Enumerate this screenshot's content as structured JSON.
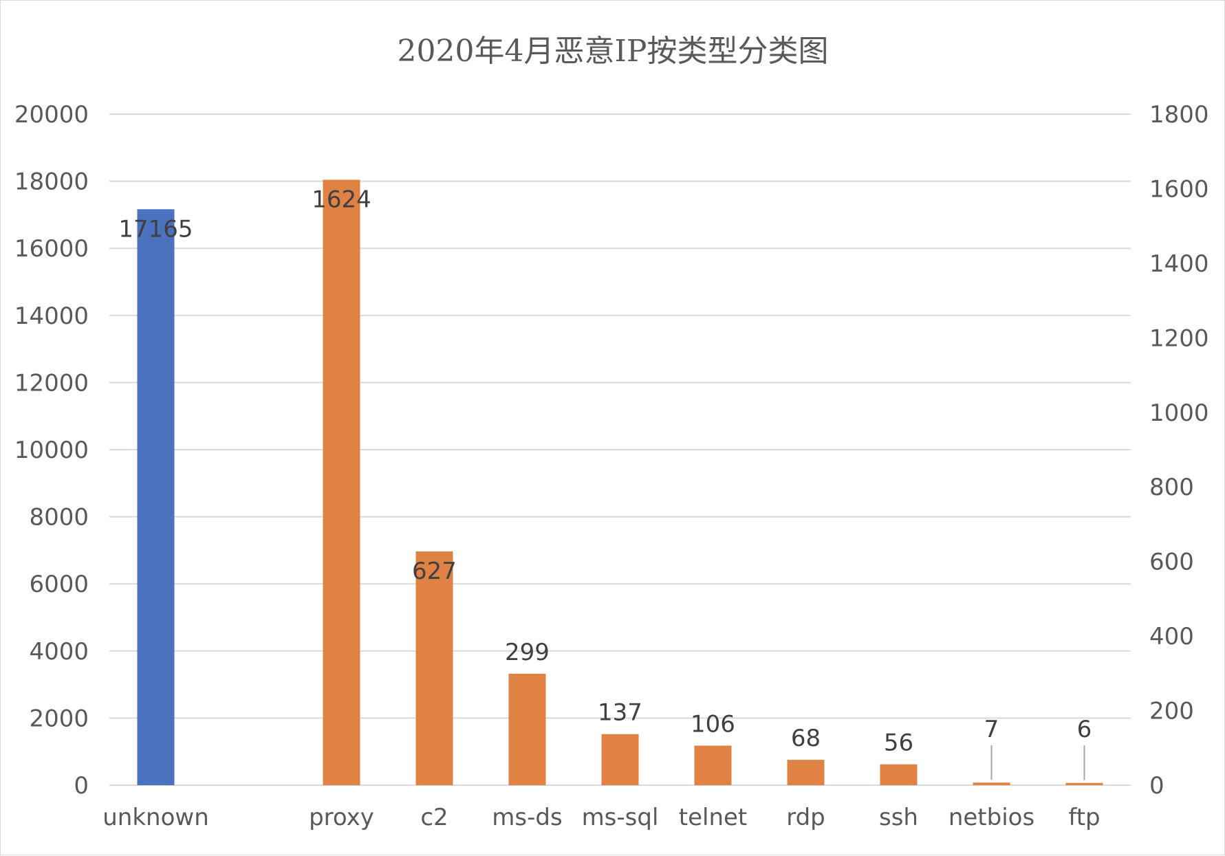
{
  "chart_data": {
    "type": "bar",
    "title": "2020年4月恶意IP按类型分类图",
    "categories": [
      "unknown",
      "",
      "proxy",
      "c2",
      "ms-ds",
      "ms-sql",
      "telnet",
      "rdp",
      "ssh",
      "netbios",
      "ftp"
    ],
    "series": [
      {
        "axis": "left",
        "color": "#4a72bf",
        "values": [
          17165,
          null,
          null,
          null,
          null,
          null,
          null,
          null,
          null,
          null,
          null
        ],
        "labels": [
          "17165",
          "",
          "",
          "",
          "",
          "",
          "",
          "",
          "",
          "",
          ""
        ]
      },
      {
        "axis": "right",
        "color": "#e08243",
        "values": [
          null,
          null,
          1624,
          627,
          299,
          137,
          106,
          68,
          56,
          7,
          6
        ],
        "labels": [
          "",
          "",
          "1624",
          "627",
          "299",
          "137",
          "106",
          "68",
          "56",
          "7",
          "6"
        ]
      }
    ],
    "y_left": {
      "min": 0,
      "max": 20000,
      "ticks": [
        "0",
        "2000",
        "4000",
        "6000",
        "8000",
        "10000",
        "12000",
        "14000",
        "16000",
        "18000",
        "20000"
      ]
    },
    "y_right": {
      "min": 0,
      "max": 1800,
      "ticks": [
        "0",
        "200",
        "400",
        "600",
        "800",
        "1000",
        "1200",
        "1400",
        "1600",
        "1800"
      ]
    },
    "grid": true,
    "legend": "none"
  }
}
